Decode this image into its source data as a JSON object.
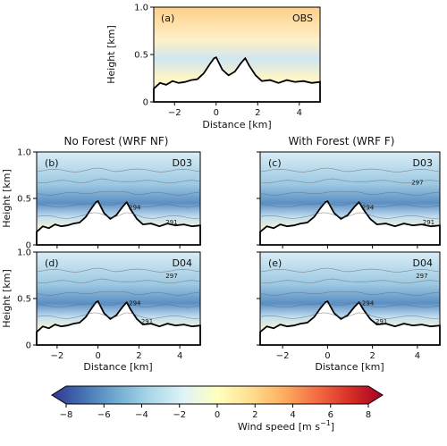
{
  "chart_data": {
    "type": "heatmap",
    "panels": [
      {
        "id": "a",
        "label": "(a)",
        "tag": "OBS",
        "col_title": "",
        "ylabel": "Height [km]",
        "xlabel": "Distance [km]",
        "contours": []
      },
      {
        "id": "b",
        "label": "(b)",
        "tag": "D03",
        "col_title": "No Forest (WRF NF)",
        "ylabel": "Height [km]",
        "xlabel": "",
        "contours": [
          {
            "text": "294",
            "x": 1.8,
            "y": 0.38
          },
          {
            "text": "291",
            "x": 3.6,
            "y": 0.22
          }
        ]
      },
      {
        "id": "c",
        "label": "(c)",
        "tag": "D03",
        "col_title": "With Forest (WRF F)",
        "ylabel": "",
        "xlabel": "",
        "contours": [
          {
            "text": "297",
            "x": 4.0,
            "y": 0.65
          },
          {
            "text": "294",
            "x": 1.8,
            "y": 0.38
          },
          {
            "text": "291",
            "x": 4.5,
            "y": 0.22
          }
        ]
      },
      {
        "id": "d",
        "label": "(d)",
        "tag": "D04",
        "col_title": "",
        "ylabel": "Height [km]",
        "xlabel": "Distance [km]",
        "contours": [
          {
            "text": "297",
            "x": 3.6,
            "y": 0.72
          },
          {
            "text": "294",
            "x": 1.8,
            "y": 0.43
          },
          {
            "text": "291",
            "x": 2.4,
            "y": 0.23
          }
        ]
      },
      {
        "id": "e",
        "label": "(e)",
        "tag": "D04",
        "col_title": "",
        "ylabel": "",
        "xlabel": "Distance [km]",
        "contours": [
          {
            "text": "297",
            "x": 4.2,
            "y": 0.72
          },
          {
            "text": "294",
            "x": 1.8,
            "y": 0.43
          },
          {
            "text": "291",
            "x": 2.4,
            "y": 0.23
          }
        ]
      }
    ],
    "xlim": [
      -3,
      5
    ],
    "ylim": [
      0,
      1.0
    ],
    "xticks": [
      -2,
      0,
      2,
      4
    ],
    "yticks_top": [
      0,
      0.5,
      1.0
    ],
    "yticks_models": [
      0,
      0.5,
      1.0
    ],
    "terrain": [
      [
        -3,
        0.14
      ],
      [
        -2.7,
        0.2
      ],
      [
        -2.4,
        0.18
      ],
      [
        -2.1,
        0.22
      ],
      [
        -1.8,
        0.2
      ],
      [
        -1.5,
        0.21
      ],
      [
        -1.2,
        0.23
      ],
      [
        -0.9,
        0.24
      ],
      [
        -0.6,
        0.3
      ],
      [
        -0.3,
        0.4
      ],
      [
        -0.1,
        0.46
      ],
      [
        0.0,
        0.47
      ],
      [
        0.3,
        0.34
      ],
      [
        0.6,
        0.28
      ],
      [
        0.9,
        0.32
      ],
      [
        1.2,
        0.41
      ],
      [
        1.4,
        0.46
      ],
      [
        1.6,
        0.38
      ],
      [
        1.9,
        0.28
      ],
      [
        2.2,
        0.22
      ],
      [
        2.6,
        0.23
      ],
      [
        3.0,
        0.2
      ],
      [
        3.4,
        0.23
      ],
      [
        3.8,
        0.21
      ],
      [
        4.2,
        0.22
      ],
      [
        4.6,
        0.2
      ],
      [
        5,
        0.21
      ]
    ],
    "colorbar": {
      "label_text": "Wind speed [m s",
      "label_sup": "−1",
      "label_end": "]",
      "ticks": [
        "−8",
        "−6",
        "−4",
        "−2",
        "0",
        "2",
        "4",
        "6",
        "8"
      ],
      "min": -8,
      "max": 8,
      "colors": [
        "#313695",
        "#4575b4",
        "#74add1",
        "#abd9e9",
        "#e0f3f8",
        "#ffffbf",
        "#fee090",
        "#fdae61",
        "#f46d43",
        "#d73027",
        "#a50026"
      ]
    }
  }
}
